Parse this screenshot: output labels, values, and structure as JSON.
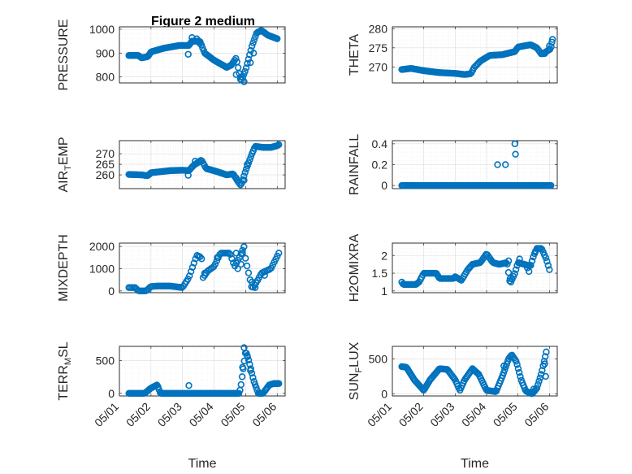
{
  "figure": {
    "title": "Figure 2 medium"
  },
  "chart_data": [
    {
      "type": "scatter",
      "id": "pressure",
      "ylabel": "PRESSURE",
      "ylabel_sub": "",
      "ylabel_tail": "",
      "ylim": [
        775,
        1010
      ],
      "yticks": [
        800,
        900,
        1000
      ],
      "ytick_labels": [
        "800",
        "900",
        "1000"
      ],
      "xlabel": "",
      "xtick_labels": [],
      "grid": true,
      "knots": [
        [
          0.3,
          890
        ],
        [
          0.6,
          890
        ],
        [
          0.7,
          880
        ],
        [
          0.9,
          885
        ],
        [
          1.0,
          905
        ],
        [
          1.4,
          920
        ],
        [
          1.9,
          932
        ],
        [
          2.2,
          932
        ],
        [
          2.3,
          950
        ],
        [
          2.55,
          950
        ],
        [
          2.7,
          900
        ],
        [
          3.0,
          870
        ],
        [
          3.4,
          840
        ],
        [
          3.55,
          850
        ],
        [
          3.7,
          880
        ],
        [
          3.85,
          780
        ],
        [
          4.0,
          830
        ],
        [
          4.2,
          930
        ],
        [
          4.35,
          985
        ],
        [
          4.5,
          995
        ],
        [
          4.7,
          975
        ],
        [
          5.0,
          960
        ]
      ],
      "extra": [
        [
          2.18,
          895
        ],
        [
          2.3,
          965
        ],
        [
          2.45,
          960
        ],
        [
          2.55,
          940
        ],
        [
          3.7,
          810
        ],
        [
          3.85,
          800
        ],
        [
          3.95,
          780
        ],
        [
          4.15,
          860
        ],
        [
          4.25,
          900
        ]
      ],
      "n": 130
    },
    {
      "type": "scatter",
      "id": "theta",
      "ylabel": "THETA",
      "ylabel_sub": "",
      "ylabel_tail": "",
      "ylim": [
        265.8,
        280.5
      ],
      "yticks": [
        270,
        275,
        280
      ],
      "ytick_labels": [
        "270",
        "275",
        "280"
      ],
      "xlabel": "",
      "xtick_labels": [],
      "grid": true,
      "knots": [
        [
          0.3,
          269.3
        ],
        [
          0.6,
          269.6
        ],
        [
          1.0,
          269.0
        ],
        [
          1.5,
          268.5
        ],
        [
          2.0,
          268.3
        ],
        [
          2.3,
          268.0
        ],
        [
          2.5,
          268.2
        ],
        [
          2.6,
          269.8
        ],
        [
          2.8,
          271.5
        ],
        [
          3.1,
          273.0
        ],
        [
          3.5,
          273.2
        ],
        [
          3.9,
          274.0
        ],
        [
          4.0,
          275.2
        ],
        [
          4.4,
          275.8
        ],
        [
          4.6,
          275.0
        ],
        [
          4.75,
          273.3
        ],
        [
          4.9,
          274.0
        ],
        [
          5.05,
          274.8
        ],
        [
          5.1,
          277.2
        ]
      ],
      "extra": [
        [
          4.85,
          273.5
        ],
        [
          5.0,
          275.5
        ],
        [
          5.08,
          276.5
        ]
      ],
      "n": 120
    },
    {
      "type": "scatter",
      "id": "air_temp",
      "ylabel": "AIR",
      "ylabel_sub": "T",
      "ylabel_tail": "EMP",
      "ylim": [
        253.5,
        276.2
      ],
      "yticks": [
        260,
        265,
        270
      ],
      "ytick_labels": [
        "260",
        "265",
        "270"
      ],
      "xlabel": "",
      "xtick_labels": [],
      "grid": true,
      "knots": [
        [
          0.3,
          260.2
        ],
        [
          0.7,
          260.0
        ],
        [
          0.9,
          259.6
        ],
        [
          1.0,
          261.0
        ],
        [
          1.3,
          261.5
        ],
        [
          1.6,
          262.0
        ],
        [
          2.0,
          262.2
        ],
        [
          2.2,
          262.0
        ],
        [
          2.35,
          264.5
        ],
        [
          2.6,
          267.0
        ],
        [
          2.75,
          263.0
        ],
        [
          3.1,
          261.5
        ],
        [
          3.4,
          260.0
        ],
        [
          3.6,
          260.5
        ],
        [
          3.75,
          257.0
        ],
        [
          3.85,
          255.0
        ],
        [
          4.0,
          262.0
        ],
        [
          4.2,
          270.0
        ],
        [
          4.3,
          273.5
        ],
        [
          4.55,
          273.0
        ],
        [
          4.8,
          273.0
        ],
        [
          5.0,
          273.8
        ],
        [
          5.05,
          274.3
        ]
      ],
      "extra": [
        [
          2.18,
          259.8
        ],
        [
          2.4,
          266.5
        ],
        [
          3.7,
          258.5
        ],
        [
          3.95,
          257.5
        ],
        [
          4.05,
          265.0
        ]
      ],
      "n": 130
    },
    {
      "type": "scatter",
      "id": "rainfall",
      "ylabel": "RAINFALL",
      "ylabel_sub": "",
      "ylabel_tail": "",
      "ylim": [
        -0.03,
        0.43
      ],
      "yticks": [
        0,
        0.2,
        0.4
      ],
      "ytick_labels": [
        "0",
        "0.2",
        "0.4"
      ],
      "xlabel": "",
      "xtick_labels": [],
      "grid": true,
      "knots": [
        [
          0.3,
          0
        ],
        [
          3.4,
          0
        ],
        [
          3.6,
          0
        ],
        [
          5.05,
          0
        ]
      ],
      "extra": [
        [
          3.35,
          0.2
        ],
        [
          3.6,
          0.2
        ],
        [
          3.9,
          0.4
        ],
        [
          3.92,
          0.3
        ]
      ],
      "n": 120
    },
    {
      "type": "scatter",
      "id": "mixdepth",
      "ylabel": "MIXDEPTH",
      "ylabel_sub": "",
      "ylabel_tail": "",
      "ylim": [
        -80,
        2150
      ],
      "yticks": [
        0,
        1000,
        2000
      ],
      "ytick_labels": [
        "0",
        "1000",
        "2000"
      ],
      "xlabel": "",
      "xtick_labels": [],
      "grid": true,
      "knots": [
        [
          0.3,
          150
        ],
        [
          0.5,
          150
        ],
        [
          0.6,
          0
        ],
        [
          0.85,
          0
        ],
        [
          1.0,
          200
        ],
        [
          1.2,
          220
        ],
        [
          1.6,
          220
        ],
        [
          2.0,
          150
        ],
        [
          2.2,
          600
        ],
        [
          2.45,
          1600
        ],
        [
          2.6,
          1500
        ],
        [
          2.65,
          600
        ],
        [
          2.8,
          900
        ],
        [
          3.0,
          1100
        ],
        [
          3.2,
          1700
        ],
        [
          3.5,
          1700
        ],
        [
          3.65,
          1100
        ],
        [
          3.8,
          1500
        ],
        [
          3.95,
          2000
        ],
        [
          4.0,
          1400
        ],
        [
          4.2,
          100
        ],
        [
          4.35,
          400
        ],
        [
          4.5,
          800
        ],
        [
          4.8,
          1000
        ],
        [
          5.05,
          1700
        ]
      ],
      "extra": [
        [
          2.7,
          800
        ],
        [
          3.1,
          1500
        ],
        [
          3.7,
          1700
        ],
        [
          3.75,
          1000
        ],
        [
          3.85,
          1200
        ],
        [
          3.9,
          1700
        ],
        [
          4.2,
          400
        ],
        [
          4.3,
          150
        ],
        [
          4.6,
          700
        ]
      ],
      "n": 100
    },
    {
      "type": "scatter",
      "id": "h2omixra",
      "ylabel": "H2OMIXRA",
      "ylabel_sub": "",
      "ylabel_tail": "",
      "ylim": [
        0.95,
        2.35
      ],
      "yticks": [
        1,
        1.5,
        2
      ],
      "ytick_labels": [
        "1",
        "1.5",
        "2"
      ],
      "xlabel": "",
      "xtick_labels": [],
      "grid": true,
      "knots": [
        [
          0.3,
          1.25
        ],
        [
          0.35,
          1.18
        ],
        [
          0.75,
          1.18
        ],
        [
          0.85,
          1.25
        ],
        [
          1.0,
          1.5
        ],
        [
          1.4,
          1.5
        ],
        [
          1.5,
          1.35
        ],
        [
          1.95,
          1.35
        ],
        [
          2.0,
          1.4
        ],
        [
          2.2,
          1.3
        ],
        [
          2.4,
          1.6
        ],
        [
          2.55,
          1.75
        ],
        [
          2.8,
          1.8
        ],
        [
          3.0,
          2.05
        ],
        [
          3.2,
          1.8
        ],
        [
          3.4,
          1.75
        ],
        [
          3.65,
          1.8
        ],
        [
          3.75,
          1.2
        ],
        [
          3.9,
          1.5
        ],
        [
          4.0,
          1.8
        ],
        [
          4.2,
          1.75
        ],
        [
          4.4,
          1.7
        ],
        [
          4.5,
          2.0
        ],
        [
          4.6,
          2.2
        ],
        [
          4.75,
          2.2
        ],
        [
          4.9,
          1.9
        ],
        [
          5.0,
          1.6
        ]
      ],
      "extra": [
        [
          3.7,
          1.85
        ],
        [
          3.75,
          1.35
        ],
        [
          4.05,
          1.9
        ],
        [
          4.3,
          1.65
        ],
        [
          4.35,
          1.55
        ],
        [
          4.45,
          1.85
        ],
        [
          4.55,
          2.1
        ]
      ],
      "n": 120
    },
    {
      "type": "scatter",
      "id": "terr_msl",
      "ylabel": "TERR",
      "ylabel_sub": "M",
      "ylabel_tail": "SL",
      "ylim": [
        -40,
        720
      ],
      "yticks": [
        0,
        500
      ],
      "ytick_labels": [
        "0",
        "500"
      ],
      "xlabel": "Time",
      "xtick_labels": [
        "05/01",
        "05/02",
        "05/03",
        "05/04",
        "05/05",
        "05/06"
      ],
      "grid": true,
      "knots": [
        [
          0.3,
          0
        ],
        [
          0.8,
          0
        ],
        [
          1.0,
          80
        ],
        [
          1.2,
          130
        ],
        [
          1.3,
          0
        ],
        [
          2.0,
          0
        ],
        [
          2.2,
          0
        ],
        [
          3.8,
          0
        ],
        [
          3.85,
          120
        ],
        [
          4.0,
          650
        ],
        [
          4.1,
          500
        ],
        [
          4.25,
          200
        ],
        [
          4.4,
          0
        ],
        [
          4.55,
          0
        ],
        [
          4.75,
          130
        ],
        [
          4.9,
          150
        ],
        [
          5.05,
          150
        ]
      ],
      "extra": [
        [
          2.2,
          120
        ],
        [
          3.95,
          700
        ],
        [
          3.9,
          400
        ],
        [
          4.05,
          580
        ],
        [
          4.15,
          350
        ]
      ],
      "n": 140
    },
    {
      "type": "scatter",
      "id": "sun_flux",
      "ylabel": "SUN",
      "ylabel_sub": "F",
      "ylabel_tail": "LUX",
      "ylim": [
        -30,
        680
      ],
      "yticks": [
        0,
        500
      ],
      "ytick_labels": [
        "0",
        "500"
      ],
      "xlabel": "Time",
      "xtick_labels": [
        "05/01",
        "05/02",
        "05/03",
        "05/04",
        "05/05",
        "05/06"
      ],
      "grid": true,
      "knots": [
        [
          0.3,
          390
        ],
        [
          0.45,
          380
        ],
        [
          0.7,
          200
        ],
        [
          1.0,
          50
        ],
        [
          1.2,
          200
        ],
        [
          1.5,
          360
        ],
        [
          1.75,
          350
        ],
        [
          2.0,
          200
        ],
        [
          2.15,
          50
        ],
        [
          2.3,
          200
        ],
        [
          2.55,
          360
        ],
        [
          2.75,
          280
        ],
        [
          3.0,
          50
        ],
        [
          3.3,
          30
        ],
        [
          3.5,
          250
        ],
        [
          3.7,
          500
        ],
        [
          3.8,
          560
        ],
        [
          3.95,
          460
        ],
        [
          4.1,
          200
        ],
        [
          4.25,
          40
        ],
        [
          4.45,
          0
        ],
        [
          4.6,
          80
        ],
        [
          4.75,
          300
        ],
        [
          4.9,
          600
        ]
      ],
      "extra": [
        [
          3.55,
          400
        ],
        [
          4.5,
          70
        ],
        [
          4.85,
          430
        ],
        [
          4.88,
          250
        ]
      ],
      "n": 140
    }
  ]
}
